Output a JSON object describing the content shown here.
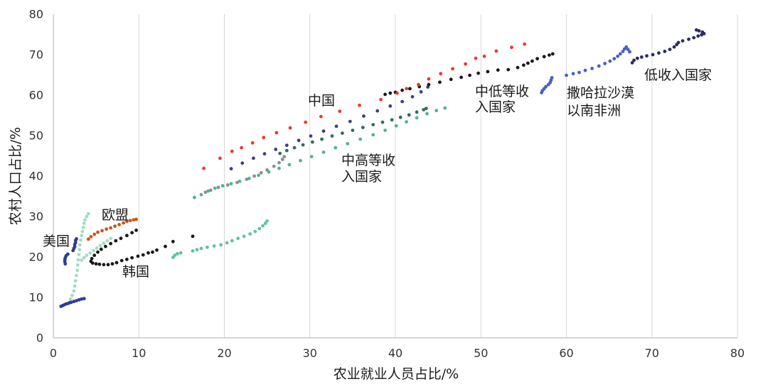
{
  "chart_data": {
    "type": "scatter",
    "xlabel": "农业就业人员占比/%",
    "ylabel": "农村人口占比/%",
    "xlim": [
      0,
      80
    ],
    "ylim": [
      0,
      80
    ],
    "xticks": [
      0,
      10,
      20,
      30,
      40,
      50,
      60,
      70,
      80
    ],
    "yticks": [
      0,
      10,
      20,
      30,
      40,
      50,
      60,
      70,
      80
    ],
    "grid": "vertical",
    "series": [
      {
        "color": "#a3dcc2",
        "points": [
          [
            4.1,
            30.7
          ],
          [
            3.9,
            30.0
          ],
          [
            3.7,
            29.2
          ],
          [
            3.6,
            28.3
          ],
          [
            3.5,
            27.3
          ],
          [
            3.4,
            26.3
          ],
          [
            3.3,
            25.3
          ],
          [
            3.2,
            24.2
          ],
          [
            3.1,
            23.0
          ],
          [
            3.05,
            21.8
          ],
          [
            3.0,
            20.6
          ],
          [
            2.9,
            19.3
          ],
          [
            2.85,
            18.0
          ],
          [
            2.8,
            16.7
          ],
          [
            2.7,
            15.4
          ],
          [
            2.6,
            14.1
          ],
          [
            2.5,
            12.8
          ],
          [
            2.4,
            11.6
          ],
          [
            2.2,
            10.5
          ],
          [
            2.0,
            9.6
          ],
          [
            3.3,
            19.2
          ],
          [
            3.6,
            19.8
          ],
          [
            3.9,
            20.4
          ],
          [
            4.3,
            21.0
          ],
          [
            4.7,
            21.6
          ],
          [
            5.1,
            22.2
          ],
          [
            5.5,
            22.8
          ],
          [
            5.9,
            23.4
          ],
          [
            6.3,
            24.0
          ],
          [
            6.7,
            24.6
          ]
        ]
      },
      {
        "color": "#5ec49e",
        "points": [
          [
            14.0,
            19.9
          ],
          [
            14.2,
            20.4
          ],
          [
            14.5,
            20.8
          ],
          [
            14.9,
            21.0
          ],
          [
            16.3,
            21.5
          ],
          [
            16.8,
            21.8
          ],
          [
            17.3,
            22.1
          ],
          [
            18.0,
            22.4
          ],
          [
            18.8,
            22.7
          ],
          [
            19.6,
            23.0
          ],
          [
            20.3,
            23.5
          ],
          [
            20.9,
            24.0
          ],
          [
            21.6,
            24.6
          ],
          [
            22.3,
            25.1
          ],
          [
            23.0,
            25.7
          ],
          [
            23.6,
            26.3
          ],
          [
            24.1,
            27.0
          ],
          [
            24.5,
            27.7
          ],
          [
            24.8,
            28.3
          ],
          [
            25.0,
            28.9
          ]
        ]
      },
      {
        "color": "#8d8c9c",
        "points": [
          [
            17.8,
            36.0
          ],
          [
            18.4,
            36.5
          ],
          [
            19.3,
            37.2
          ],
          [
            20.4,
            37.8
          ],
          [
            21.5,
            38.4
          ],
          [
            22.6,
            39.2
          ],
          [
            23.5,
            40.0
          ],
          [
            24.3,
            40.8
          ],
          [
            25.0,
            41.5
          ],
          [
            25.8,
            42.4
          ],
          [
            26.4,
            43.3
          ],
          [
            26.8,
            44.1
          ],
          [
            27.0,
            44.8
          ]
        ]
      },
      {
        "label": [
          "中高等收",
          "入国家"
        ],
        "color": "#52b48a",
        "points": [
          [
            16.5,
            34.7
          ],
          [
            17.3,
            35.4
          ],
          [
            18.1,
            36.3
          ],
          [
            18.9,
            37.0
          ],
          [
            19.8,
            37.6
          ],
          [
            20.8,
            38.1
          ],
          [
            21.8,
            38.7
          ],
          [
            22.9,
            39.4
          ],
          [
            24.0,
            40.2
          ],
          [
            25.2,
            41.0
          ],
          [
            26.4,
            41.9
          ],
          [
            27.6,
            42.8
          ],
          [
            28.9,
            43.8
          ],
          [
            30.2,
            44.8
          ],
          [
            31.6,
            45.9
          ],
          [
            33.0,
            47.0
          ],
          [
            34.4,
            48.0
          ],
          [
            35.9,
            49.1
          ],
          [
            37.4,
            50.2
          ],
          [
            38.8,
            51.3
          ],
          [
            40.1,
            52.4
          ],
          [
            41.3,
            53.4
          ],
          [
            42.5,
            54.4
          ],
          [
            43.7,
            55.4
          ],
          [
            44.8,
            56.2
          ],
          [
            45.8,
            56.8
          ]
        ]
      },
      {
        "color": "#2d6e57",
        "points": [
          [
            26.5,
            45.6
          ],
          [
            27.3,
            46.3
          ],
          [
            28.2,
            47.0
          ],
          [
            29.2,
            47.7
          ],
          [
            30.3,
            48.4
          ],
          [
            31.4,
            49.1
          ],
          [
            32.6,
            49.9
          ],
          [
            33.8,
            50.6
          ],
          [
            35.0,
            51.3
          ],
          [
            36.2,
            52.0
          ],
          [
            37.4,
            52.7
          ],
          [
            38.5,
            53.3
          ],
          [
            39.6,
            53.9
          ],
          [
            40.6,
            54.5
          ],
          [
            41.6,
            55.1
          ],
          [
            42.5,
            55.8
          ],
          [
            43.3,
            56.4
          ],
          [
            43.6,
            56.7
          ]
        ]
      },
      {
        "color": "#3c3f85",
        "points": [
          [
            20.8,
            41.8
          ],
          [
            22.1,
            43.2
          ],
          [
            23.4,
            44.4
          ],
          [
            24.7,
            45.5
          ],
          [
            26.0,
            46.6
          ],
          [
            27.3,
            47.6
          ],
          [
            28.7,
            48.8
          ],
          [
            30.1,
            49.9
          ],
          [
            31.6,
            51.1
          ],
          [
            33.1,
            52.3
          ],
          [
            34.7,
            53.5
          ],
          [
            36.3,
            54.8
          ],
          [
            37.9,
            56.1
          ],
          [
            39.4,
            57.3
          ],
          [
            40.8,
            58.4
          ],
          [
            42.0,
            59.6
          ],
          [
            43.0,
            60.8
          ],
          [
            43.8,
            62.0
          ]
        ]
      },
      {
        "color": "#2d3c96",
        "points": [
          [
            0.9,
            7.8
          ],
          [
            1.1,
            8.0
          ],
          [
            1.3,
            8.2
          ],
          [
            1.5,
            8.4
          ],
          [
            1.7,
            8.5
          ],
          [
            1.9,
            8.7
          ],
          [
            2.1,
            8.8
          ],
          [
            2.4,
            9.0
          ],
          [
            2.7,
            9.2
          ],
          [
            3.0,
            9.4
          ],
          [
            3.3,
            9.6
          ],
          [
            3.6,
            9.7
          ]
        ]
      },
      {
        "label": [
          "美国"
        ],
        "color": "#2d3c96",
        "points": [
          [
            1.4,
            18.3
          ],
          [
            1.35,
            18.8
          ],
          [
            1.35,
            19.3
          ],
          [
            1.4,
            19.8
          ],
          [
            1.5,
            20.3
          ],
          [
            1.7,
            20.7
          ],
          [
            2.3,
            21.6
          ],
          [
            2.4,
            22.1
          ],
          [
            2.5,
            22.6
          ],
          [
            2.5,
            23.1
          ],
          [
            2.6,
            23.6
          ],
          [
            2.6,
            24.1
          ],
          [
            2.7,
            24.5
          ]
        ]
      },
      {
        "label": [
          "欧盟"
        ],
        "color": "#c8561d",
        "points": [
          [
            4.1,
            24.4
          ],
          [
            4.4,
            25.0
          ],
          [
            4.8,
            25.6
          ],
          [
            5.2,
            26.1
          ],
          [
            5.7,
            26.5
          ],
          [
            6.2,
            26.9
          ],
          [
            6.7,
            27.2
          ],
          [
            7.2,
            27.6
          ],
          [
            7.7,
            28.0
          ],
          [
            8.2,
            28.4
          ],
          [
            8.6,
            28.8
          ],
          [
            9.0,
            29.0
          ],
          [
            9.4,
            29.2
          ],
          [
            9.7,
            29.3
          ]
        ]
      },
      {
        "label": [
          "韩国"
        ],
        "color": "#1a1a1a",
        "points": [
          [
            16.3,
            25.1
          ],
          [
            14.0,
            23.8
          ],
          [
            13.1,
            22.6
          ],
          [
            12.1,
            21.7
          ],
          [
            11.6,
            21.2
          ],
          [
            11.1,
            21.0
          ],
          [
            10.5,
            20.5
          ],
          [
            9.9,
            20.2
          ],
          [
            9.2,
            19.8
          ],
          [
            8.6,
            19.4
          ],
          [
            8.0,
            19.1
          ],
          [
            7.4,
            18.6
          ],
          [
            6.9,
            18.3
          ],
          [
            6.4,
            18.1
          ],
          [
            5.9,
            18.1
          ],
          [
            5.4,
            18.2
          ],
          [
            5.0,
            18.3
          ],
          [
            4.6,
            18.5
          ],
          [
            4.4,
            18.9
          ],
          [
            4.5,
            19.6
          ],
          [
            4.8,
            20.4
          ],
          [
            5.2,
            21.2
          ],
          [
            5.6,
            21.9
          ],
          [
            6.1,
            22.6
          ],
          [
            6.7,
            23.3
          ],
          [
            7.3,
            24.0
          ],
          [
            7.9,
            24.6
          ],
          [
            8.6,
            25.3
          ],
          [
            9.2,
            26.0
          ],
          [
            9.7,
            26.6
          ]
        ]
      },
      {
        "label": [
          "中低等收",
          "入国家"
        ],
        "color": "#1a1a1a",
        "points": [
          [
            38.8,
            60.2
          ],
          [
            39.4,
            60.5
          ],
          [
            40.0,
            60.7
          ],
          [
            40.8,
            61.2
          ],
          [
            41.7,
            61.6
          ],
          [
            42.8,
            62.1
          ],
          [
            43.9,
            62.6
          ],
          [
            45.2,
            63.2
          ],
          [
            46.5,
            63.9
          ],
          [
            47.7,
            64.4
          ],
          [
            48.7,
            64.9
          ],
          [
            49.7,
            65.4
          ],
          [
            50.8,
            65.8
          ],
          [
            52.0,
            66.2
          ],
          [
            53.2,
            66.3
          ],
          [
            54.3,
            66.8
          ],
          [
            55.0,
            67.4
          ],
          [
            55.5,
            67.9
          ],
          [
            56.0,
            68.4
          ],
          [
            56.6,
            69.0
          ],
          [
            57.4,
            69.5
          ],
          [
            58.0,
            69.9
          ],
          [
            58.4,
            70.2
          ]
        ]
      },
      {
        "label": [
          "中国"
        ],
        "color": "#e83a2f",
        "points": [
          [
            17.6,
            41.9
          ],
          [
            19.5,
            44.4
          ],
          [
            20.9,
            46.1
          ],
          [
            22.0,
            47.0
          ],
          [
            23.3,
            48.2
          ],
          [
            24.6,
            49.5
          ],
          [
            26.1,
            50.7
          ],
          [
            27.7,
            51.9
          ],
          [
            29.5,
            53.3
          ],
          [
            31.3,
            54.7
          ],
          [
            33.5,
            56.0
          ],
          [
            35.8,
            57.5
          ],
          [
            38.3,
            58.9
          ],
          [
            40.2,
            60.5
          ],
          [
            41.3,
            61.6
          ],
          [
            42.7,
            62.6
          ],
          [
            43.9,
            64.0
          ],
          [
            45.3,
            65.3
          ],
          [
            46.7,
            66.5
          ],
          [
            48.2,
            67.7
          ],
          [
            49.4,
            69.1
          ],
          [
            50.4,
            69.6
          ],
          [
            51.8,
            70.9
          ],
          [
            53.6,
            71.8
          ],
          [
            55.1,
            72.6
          ]
        ]
      },
      {
        "label": [
          "撒哈拉沙漠",
          "以南非洲"
        ],
        "color": "#4a5ec5",
        "points": [
          [
            57.1,
            60.6
          ],
          [
            57.2,
            61.1
          ],
          [
            57.4,
            61.6
          ],
          [
            57.6,
            62.1
          ],
          [
            57.9,
            62.6
          ],
          [
            58.1,
            63.1
          ],
          [
            58.2,
            63.7
          ],
          [
            58.3,
            64.3
          ],
          [
            60.0,
            64.9
          ],
          [
            60.8,
            65.3
          ],
          [
            61.5,
            65.6
          ],
          [
            62.2,
            66.1
          ],
          [
            63.0,
            66.6
          ],
          [
            63.8,
            67.2
          ],
          [
            64.5,
            67.8
          ],
          [
            65.1,
            68.4
          ],
          [
            65.6,
            69.0
          ],
          [
            66.0,
            69.6
          ],
          [
            66.3,
            70.2
          ],
          [
            66.6,
            70.8
          ],
          [
            66.8,
            71.4
          ],
          [
            67.0,
            71.9
          ],
          [
            67.2,
            71.3
          ],
          [
            67.4,
            70.7
          ]
        ]
      },
      {
        "label": [
          "低收入国家"
        ],
        "color": "#2b2c62",
        "points": [
          [
            67.7,
            68.0
          ],
          [
            67.9,
            68.6
          ],
          [
            68.3,
            69.1
          ],
          [
            68.8,
            69.4
          ],
          [
            69.4,
            69.7
          ],
          [
            70.1,
            70.0
          ],
          [
            70.8,
            70.4
          ],
          [
            71.5,
            70.8
          ],
          [
            72.1,
            71.3
          ],
          [
            72.6,
            71.9
          ],
          [
            72.9,
            72.5
          ],
          [
            73.1,
            73.0
          ],
          [
            73.6,
            73.4
          ],
          [
            74.3,
            73.8
          ],
          [
            74.9,
            74.2
          ],
          [
            75.4,
            74.6
          ],
          [
            75.8,
            74.9
          ],
          [
            76.1,
            75.2
          ],
          [
            75.9,
            75.6
          ],
          [
            75.5,
            75.9
          ],
          [
            75.2,
            76.1
          ]
        ]
      }
    ]
  }
}
